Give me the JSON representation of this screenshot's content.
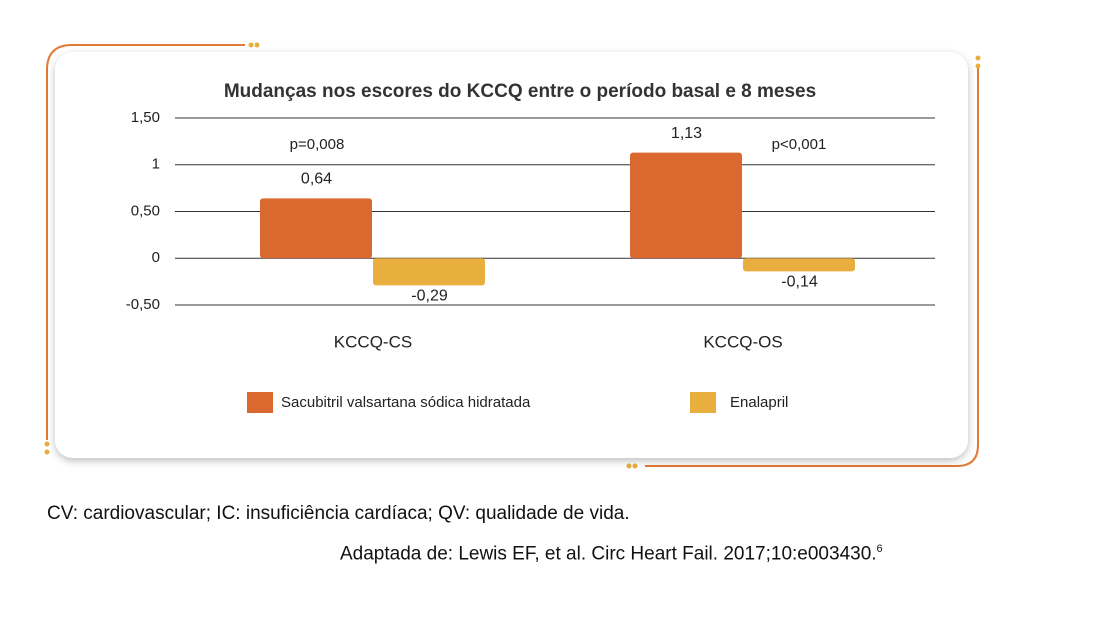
{
  "chart_data": {
    "type": "bar",
    "title": "Mudanças nos escores do KCCQ entre o período basal e 8 meses",
    "categories": [
      "KCCQ-CS",
      "KCCQ-OS"
    ],
    "series": [
      {
        "name": "Sacubitril valsartana sódica hidratada",
        "color": "#d9692e",
        "values": [
          0.64,
          1.13
        ],
        "value_labels": [
          "0,64",
          "1,13"
        ]
      },
      {
        "name": "Enalapril",
        "color": "#e8ae3e",
        "values": [
          -0.29,
          -0.14
        ],
        "value_labels": [
          "-0,29",
          "-0,14"
        ]
      }
    ],
    "annotations": [
      "p=0,008",
      "p<0,001"
    ],
    "ylim": [
      -0.5,
      1.5
    ],
    "yticks": [
      {
        "value": 1.5,
        "label": "1,50"
      },
      1,
      {
        "value": 0.5,
        "label": "0,50"
      },
      0,
      {
        "value": -0.5,
        "label": "-0,50"
      }
    ],
    "grid": true
  },
  "notes": "CV: cardiovascular; IC: insuficiência cardíaca; QV: qualidade de vida.",
  "source": "Adaptada de: Lewis EF, et al. Circ Heart Fail. 2017;10:e003430.",
  "source_ref": "6"
}
